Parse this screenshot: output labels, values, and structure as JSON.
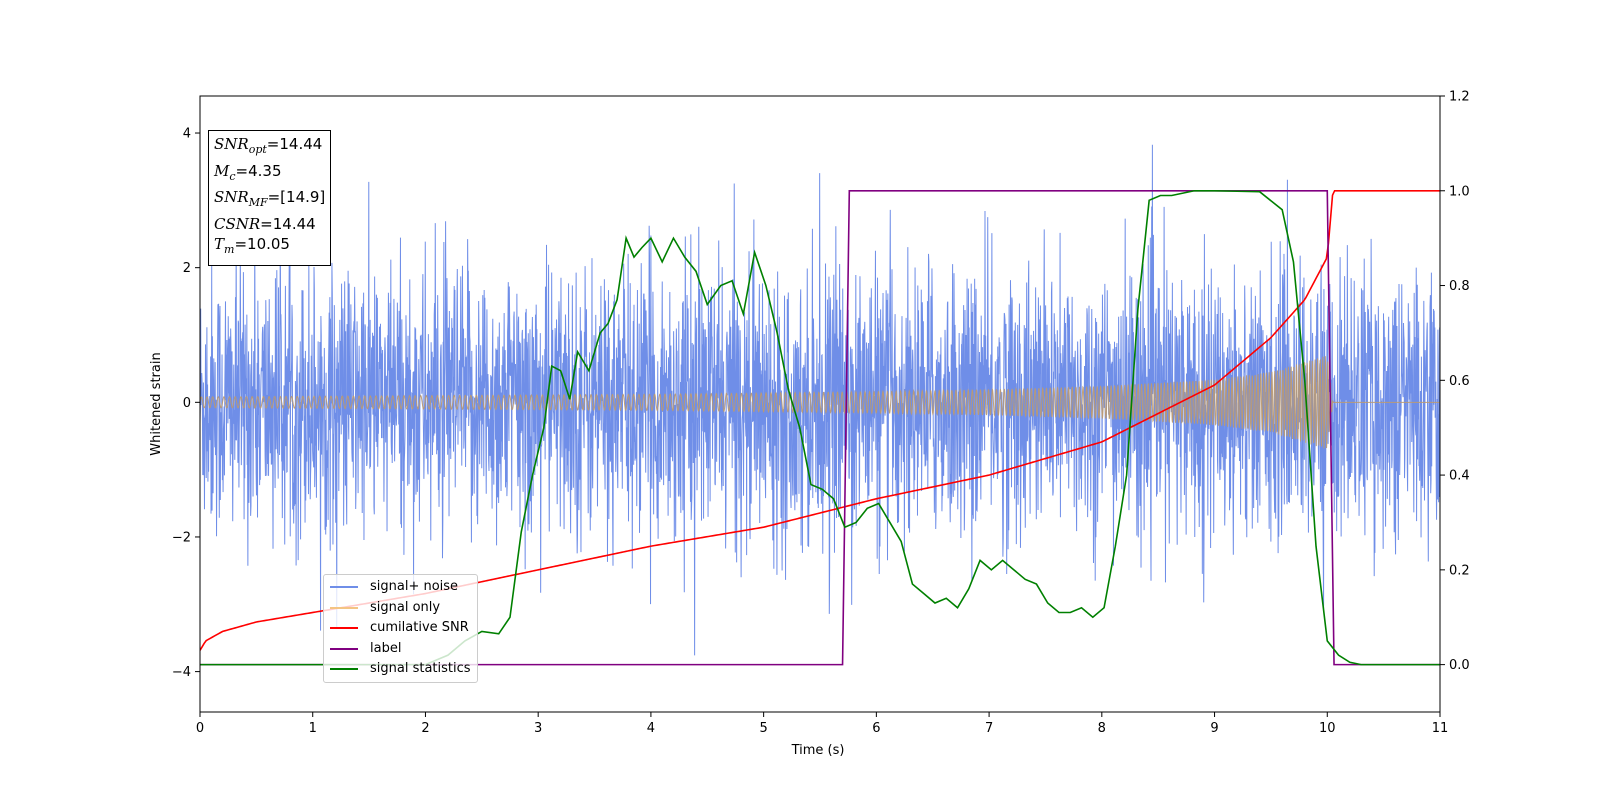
{
  "chart_data": {
    "type": "line",
    "xlabel": "Time (s)",
    "ylabel": "Whitened strain",
    "xlim": [
      0,
      11
    ],
    "ylim_left": [
      -4.6,
      4.55
    ],
    "ylim_right": [
      -0.1,
      1.2
    ],
    "x_ticks": [
      "0",
      "1",
      "2",
      "3",
      "4",
      "5",
      "6",
      "7",
      "8",
      "9",
      "10",
      "11"
    ],
    "y_ticks_left": [
      "−4",
      "−2",
      "0",
      "2",
      "4"
    ],
    "y_ticks_right": [
      "0.0",
      "0.2",
      "0.4",
      "0.6",
      "0.8",
      "1.0",
      "1.2"
    ],
    "annotation": {
      "snr_opt": "=14.44",
      "mc": "=4.35",
      "snr_mf": "=[14.9]",
      "csnr": "=14.44",
      "tm": "=10.05"
    },
    "legend": [
      "signal+ noise",
      "signal only",
      "cumilative SNR",
      "label",
      "signal statistics"
    ],
    "colors": {
      "signal_noise": "#6f8ee8",
      "signal_only": "#f4c483",
      "overlap": "#bb9a73",
      "cumulative_snr": "#ff0000",
      "label": "#800080",
      "signal_statistics": "#008000"
    },
    "series": [
      {
        "name": "signal+ noise",
        "axis": "left",
        "description_range": [
          -3.0,
          3.0
        ],
        "noise_std": 1.0,
        "peak_max": 4.1,
        "peak_min": -4.2
      },
      {
        "name": "signal only",
        "axis": "left",
        "envelope": {
          "x": [
            0,
            1,
            2,
            3,
            4,
            5,
            6,
            7,
            8,
            9,
            9.5,
            10.0,
            10.05,
            11
          ],
          "amplitude": [
            0.08,
            0.09,
            0.1,
            0.11,
            0.12,
            0.14,
            0.16,
            0.19,
            0.24,
            0.34,
            0.45,
            0.7,
            0.0,
            0.0
          ]
        }
      },
      {
        "name": "cumilative SNR",
        "axis": "right",
        "x": [
          0,
          0.05,
          0.2,
          0.5,
          1,
          2,
          3,
          4,
          5,
          6,
          7,
          8,
          9,
          9.5,
          9.8,
          10.0,
          10.05,
          11
        ],
        "y": [
          0.03,
          0.05,
          0.07,
          0.09,
          0.11,
          0.15,
          0.2,
          0.25,
          0.29,
          0.35,
          0.4,
          0.47,
          0.59,
          0.69,
          0.77,
          0.86,
          1.0,
          1.0
        ]
      },
      {
        "name": "label",
        "axis": "right",
        "x": [
          0,
          5.7,
          5.76,
          10.0,
          10.06,
          11
        ],
        "y": [
          0,
          0,
          1,
          1,
          0,
          0
        ]
      },
      {
        "name": "signal statistics",
        "axis": "right",
        "x": [
          0,
          2.0,
          2.2,
          2.35,
          2.5,
          2.65,
          2.75,
          2.85,
          2.95,
          3.05,
          3.12,
          3.2,
          3.28,
          3.35,
          3.45,
          3.55,
          3.62,
          3.7,
          3.78,
          3.85,
          3.92,
          4.0,
          4.1,
          4.2,
          4.3,
          4.4,
          4.5,
          4.62,
          4.72,
          4.82,
          4.92,
          5.02,
          5.12,
          5.22,
          5.32,
          5.42,
          5.52,
          5.62,
          5.72,
          5.82,
          5.92,
          6.02,
          6.12,
          6.22,
          6.32,
          6.42,
          6.52,
          6.62,
          6.72,
          6.82,
          6.92,
          7.02,
          7.12,
          7.22,
          7.32,
          7.42,
          7.52,
          7.62,
          7.72,
          7.82,
          7.92,
          8.02,
          8.12,
          8.22,
          8.32,
          8.42,
          8.52,
          8.62,
          8.72,
          8.82,
          9.0,
          9.2,
          9.4,
          9.6,
          9.7,
          9.8,
          9.9,
          10.0,
          10.1,
          10.2,
          10.3,
          11
        ],
        "y": [
          0,
          0,
          0.02,
          0.05,
          0.07,
          0.065,
          0.1,
          0.28,
          0.4,
          0.5,
          0.63,
          0.62,
          0.56,
          0.66,
          0.62,
          0.7,
          0.72,
          0.77,
          0.9,
          0.86,
          0.88,
          0.9,
          0.85,
          0.9,
          0.86,
          0.83,
          0.76,
          0.8,
          0.81,
          0.74,
          0.87,
          0.8,
          0.7,
          0.58,
          0.5,
          0.38,
          0.37,
          0.35,
          0.29,
          0.3,
          0.33,
          0.34,
          0.3,
          0.26,
          0.17,
          0.15,
          0.13,
          0.14,
          0.12,
          0.16,
          0.22,
          0.2,
          0.22,
          0.2,
          0.18,
          0.17,
          0.13,
          0.11,
          0.11,
          0.12,
          0.1,
          0.12,
          0.25,
          0.4,
          0.75,
          0.98,
          0.99,
          0.99,
          0.995,
          1.0,
          1.0,
          0.999,
          0.998,
          0.96,
          0.85,
          0.6,
          0.25,
          0.05,
          0.02,
          0.005,
          0,
          0
        ]
      }
    ]
  }
}
